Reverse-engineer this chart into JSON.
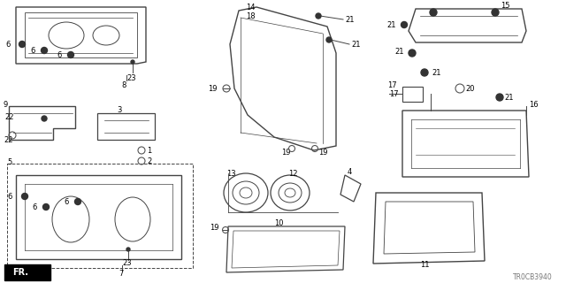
{
  "diagram_code": "TR0CB3940",
  "bg_color": "#ffffff",
  "lc": "#444444",
  "tc": "#000000",
  "gray": "#888888"
}
